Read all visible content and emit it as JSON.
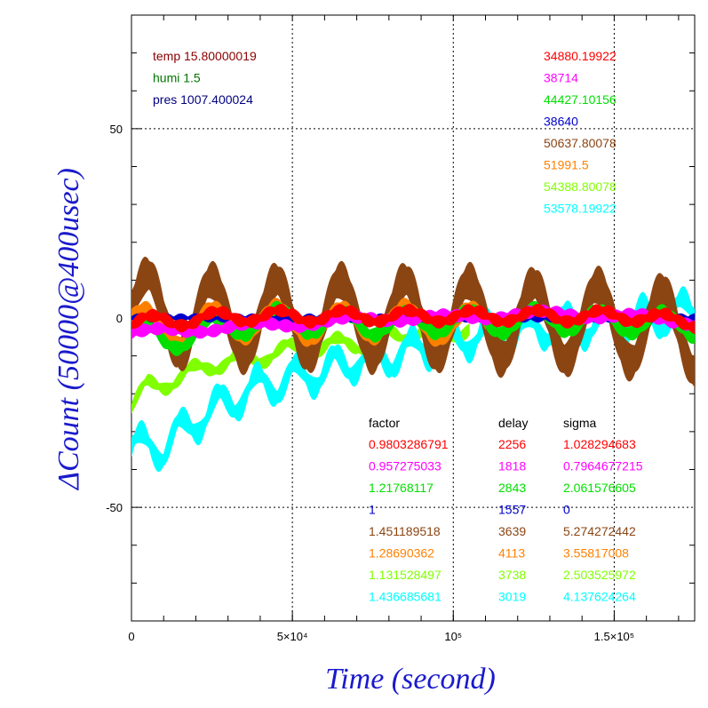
{
  "chart_data": {
    "type": "line",
    "xlabel": "Time (second)",
    "ylabel": "ΔCount (50000@400usec)",
    "xlim": [
      0,
      175000
    ],
    "ylim": [
      -80,
      80
    ],
    "grid": true,
    "x_ticks": [
      {
        "value": 0,
        "label": "0"
      },
      {
        "value": 50000,
        "label": "5×10⁴"
      },
      {
        "value": 100000,
        "label": "10⁵"
      },
      {
        "value": 150000,
        "label": "1.5×10⁵"
      }
    ],
    "y_ticks": [
      {
        "value": -50,
        "label": "-50"
      },
      {
        "value": 0,
        "label": "0"
      },
      {
        "value": 50,
        "label": "50"
      }
    ],
    "env": [
      {
        "text": "temp 15.80000019",
        "color": "#8b0000"
      },
      {
        "text": "humi 1.5",
        "color": "#007700"
      },
      {
        "text": "pres 1007.400024",
        "color": "#000080"
      }
    ],
    "table_headers": [
      "factor",
      "delay",
      "sigma"
    ],
    "series": [
      {
        "means": "34880.19922",
        "factor": "0.9803286791",
        "delay": "2256",
        "sigma": "1.028294683",
        "color": "#ff0000",
        "profile": [
          [
            0,
            -2
          ],
          [
            10000,
            0
          ],
          [
            20000,
            -1
          ],
          [
            30000,
            1
          ],
          [
            40000,
            0
          ],
          [
            50000,
            1
          ],
          [
            60000,
            0
          ],
          [
            70000,
            1
          ],
          [
            80000,
            0
          ],
          [
            90000,
            1
          ],
          [
            100000,
            0
          ],
          [
            110000,
            1
          ],
          [
            120000,
            0
          ],
          [
            130000,
            1
          ],
          [
            140000,
            0
          ],
          [
            150000,
            1
          ],
          [
            160000,
            0
          ],
          [
            175000,
            -1
          ]
        ],
        "amp": 1.5,
        "period": 20000
      },
      {
        "means": "38714",
        "factor": "0.957275033",
        "delay": "1818",
        "sigma": "0.7964677215",
        "color": "#ff00ff",
        "profile": [
          [
            0,
            -4
          ],
          [
            20000,
            -3
          ],
          [
            40000,
            -2
          ],
          [
            60000,
            -1
          ],
          [
            80000,
            0
          ],
          [
            100000,
            0
          ],
          [
            120000,
            1
          ],
          [
            140000,
            1
          ],
          [
            160000,
            0
          ],
          [
            175000,
            -1
          ]
        ],
        "amp": 0.8,
        "period": 30000
      },
      {
        "means": "44427.10156",
        "factor": "1.21768117",
        "delay": "2843",
        "sigma": "2.061576605",
        "color": "#00e000",
        "profile": [
          [
            0,
            -3
          ],
          [
            10000,
            -6
          ],
          [
            20000,
            -4
          ],
          [
            30000,
            -2
          ],
          [
            40000,
            -1
          ],
          [
            50000,
            0
          ],
          [
            60000,
            -2
          ],
          [
            70000,
            -1
          ],
          [
            80000,
            -2
          ],
          [
            90000,
            -1
          ],
          [
            100000,
            -1
          ],
          [
            110000,
            -1
          ],
          [
            120000,
            -1
          ],
          [
            130000,
            0
          ],
          [
            140000,
            -1
          ],
          [
            150000,
            -1
          ],
          [
            160000,
            -1
          ],
          [
            175000,
            -2
          ]
        ],
        "amp": 3,
        "period": 20000
      },
      {
        "means": "38640",
        "factor": "1",
        "delay": "1557",
        "sigma": "0",
        "color": "#0000cc",
        "profile": [
          [
            0,
            0
          ],
          [
            175000,
            0
          ]
        ],
        "amp": 0,
        "period": 20000
      },
      {
        "means": "50637.80078",
        "factor": "1.451189518",
        "delay": "3639",
        "sigma": "5.274272442",
        "color": "#8b4513",
        "profile": [
          [
            0,
            2
          ],
          [
            20000,
            0
          ],
          [
            40000,
            0
          ],
          [
            60000,
            0
          ],
          [
            80000,
            0
          ],
          [
            100000,
            0
          ],
          [
            120000,
            -1
          ],
          [
            140000,
            -1
          ],
          [
            160000,
            -2
          ],
          [
            175000,
            -4
          ]
        ],
        "amp": 10,
        "period": 20000
      },
      {
        "means": "51991.5",
        "factor": "1.28690362",
        "delay": "4113",
        "sigma": "3.55817008",
        "color": "#ff8000",
        "profile": [
          [
            0,
            0
          ],
          [
            10000,
            -4
          ],
          [
            20000,
            -2
          ],
          [
            30000,
            -1
          ],
          [
            40000,
            -1
          ],
          [
            50000,
            -1
          ],
          [
            60000,
            -2
          ],
          [
            70000,
            -1
          ],
          [
            80000,
            -1
          ],
          [
            90000,
            -1
          ],
          [
            100000,
            -2
          ],
          [
            110000,
            -1
          ]
        ],
        "amp": 4,
        "period": 20000
      },
      {
        "means": "54388.80078",
        "factor": "1.131528497",
        "delay": "3738",
        "sigma": "2.503525972",
        "color": "#80ff00",
        "profile": [
          [
            0,
            -24
          ],
          [
            5000,
            -18
          ],
          [
            15000,
            -16
          ],
          [
            25000,
            -12
          ],
          [
            35000,
            -11
          ],
          [
            45000,
            -9
          ],
          [
            55000,
            -8
          ],
          [
            65000,
            -7
          ],
          [
            75000,
            -6
          ],
          [
            85000,
            -4
          ],
          [
            95000,
            -3
          ],
          [
            105000,
            -3
          ]
        ],
        "amp": 2,
        "period": 15000
      },
      {
        "means": "53578.19922",
        "factor": "1.436685681",
        "delay": "3019",
        "sigma": "4.137624264",
        "color": "#00ffff",
        "profile": [
          [
            0,
            -34
          ],
          [
            10000,
            -34
          ],
          [
            20000,
            -27
          ],
          [
            30000,
            -22
          ],
          [
            40000,
            -18
          ],
          [
            50000,
            -16
          ],
          [
            60000,
            -14
          ],
          [
            70000,
            -11
          ],
          [
            80000,
            -10
          ],
          [
            90000,
            -8
          ],
          [
            100000,
            -6
          ],
          [
            110000,
            -4
          ],
          [
            120000,
            -4
          ],
          [
            130000,
            -2
          ],
          [
            140000,
            -2
          ],
          [
            150000,
            -1
          ],
          [
            160000,
            0
          ],
          [
            175000,
            2
          ]
        ],
        "amp": 4,
        "period": 12000
      }
    ]
  }
}
